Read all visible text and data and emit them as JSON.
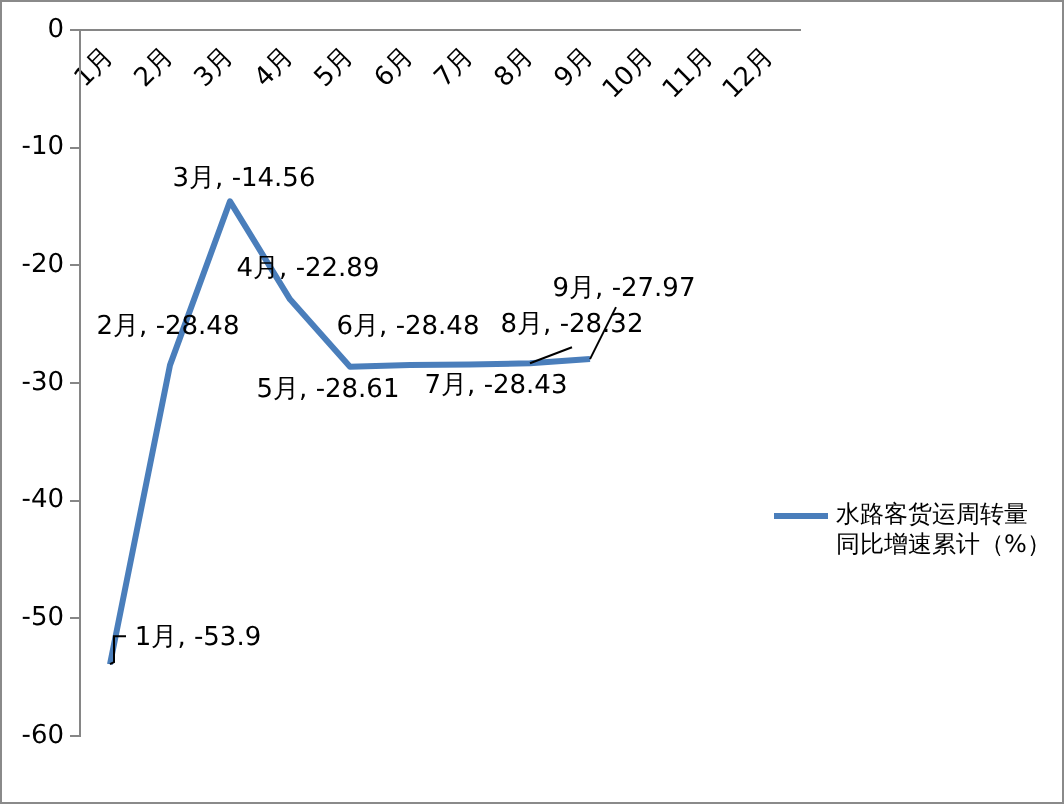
{
  "chart_data": {
    "type": "line",
    "categories": [
      "1月",
      "2月",
      "3月",
      "4月",
      "5月",
      "6月",
      "7月",
      "8月",
      "9月",
      "10月",
      "11月",
      "12月"
    ],
    "series": [
      {
        "name": "水路客货运周转量同比增速累计（%）",
        "color": "#4a7ebb",
        "values": [
          -53.9,
          -28.48,
          -14.56,
          -22.89,
          -28.61,
          -28.48,
          -28.43,
          -28.32,
          -27.97,
          null,
          null,
          null
        ],
        "value_labels": [
          "1月, -53.9",
          "2月, -28.48",
          "3月, -14.56",
          "4月, -22.89",
          "5月, -28.61",
          "6月, -28.48",
          "7月, -28.43",
          "8月, -28.32",
          "9月, -27.97",
          null,
          null,
          null
        ]
      }
    ],
    "ylim": [
      -60,
      0
    ],
    "yticks": [
      -60,
      -50,
      -40,
      -30,
      -20,
      -10,
      0
    ],
    "grid": false,
    "legend": "right",
    "marker": "none",
    "line_style": "solid"
  }
}
